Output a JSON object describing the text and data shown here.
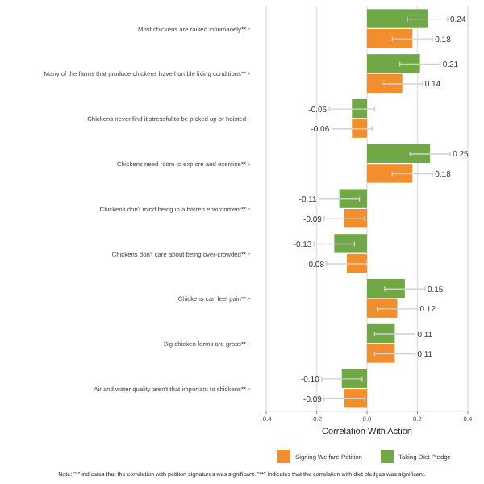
{
  "chart_data": {
    "type": "bar",
    "orientation": "horizontal",
    "xlabel": "Correlation With Action",
    "categories": [
      "Most chickens are raised inhumanely**",
      "Many of the farms that produce chickens have horrible living conditions**",
      "Chickens never find it stressful to be picked up or hoisted",
      "Chickens need room to explore and exercise**",
      "Chickens don't mind being in a barren environment**",
      "Chickens don't care about being over-crowded**",
      "Chickens can feel pain**",
      "Big chicken farms are gross**",
      "Air and water quality aren't that important to chickens**"
    ],
    "series": [
      {
        "name": "Taking Diet Pledge",
        "color": "#70a845",
        "values": [
          0.24,
          0.21,
          -0.06,
          0.25,
          -0.11,
          -0.13,
          0.15,
          0.11,
          -0.1
        ],
        "value_labels": [
          "0.24",
          "0.21",
          "-0.06",
          "0.25",
          "-0.11",
          "-0.13",
          "0.15",
          "0.11",
          "-0.10"
        ],
        "errors": [
          0.08,
          0.08,
          0.09,
          0.08,
          0.08,
          0.08,
          0.08,
          0.08,
          0.08
        ]
      },
      {
        "name": "Signing Welfare Petition",
        "color": "#f28e2b",
        "values": [
          0.18,
          0.14,
          -0.06,
          0.18,
          -0.09,
          -0.08,
          0.12,
          0.11,
          -0.09
        ],
        "value_labels": [
          "0.18",
          "0.14",
          "-0.06",
          "0.18",
          "-0.09",
          "-0.08",
          "0.12",
          "0.11",
          "-0.09"
        ],
        "errors": [
          0.08,
          0.08,
          0.08,
          0.08,
          0.08,
          0.08,
          0.08,
          0.08,
          0.08
        ]
      }
    ],
    "xlim": [
      -0.4,
      0.4
    ],
    "xticks": [
      -0.4,
      -0.2,
      {
        "value": 0,
        "label": "0.0"
      },
      0.2,
      0.4
    ],
    "grid": "x",
    "legend": "bottom",
    "annotations": [
      "Note: \"*\" indicates that the correlation with petition signatures was significant. \"**\" indicates that the correlation with diet pledges was significant."
    ]
  }
}
